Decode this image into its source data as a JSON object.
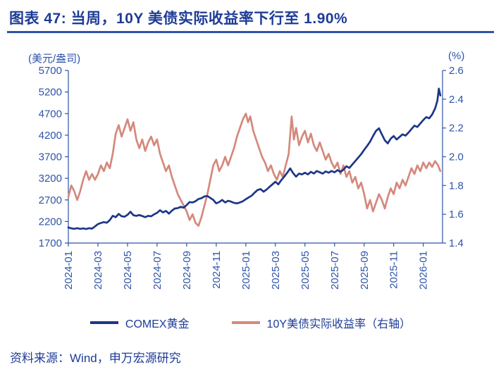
{
  "title": "图表 47: 当周，10Y 美债实际收益率下行至 1.90%",
  "source": "资料来源：Wind，申万宏源研究",
  "colors": {
    "title_text": "#1e3c96",
    "rule": "#2e54a8",
    "axis": "#2e54a8",
    "body_text": "#1e3c96",
    "gold_line": "#1c3786",
    "yield_line": "#d4897c"
  },
  "chart_data": {
    "type": "line",
    "title": "当周，10Y 美债实际收益率下行至 1.90%",
    "grid": false,
    "legend_position": "bottom",
    "left_axis": {
      "label": "(美元/盎司)",
      "min": 1700,
      "max": 5700,
      "decimals": 0,
      "ticks": [
        1700,
        2200,
        2700,
        3200,
        3700,
        4200,
        4700,
        5200,
        5700
      ]
    },
    "right_axis": {
      "label": "(%)",
      "min": 1.4,
      "max": 2.6,
      "decimals": 1,
      "ticks": [
        1.4,
        1.6,
        1.8,
        2.0,
        2.2,
        2.4,
        2.6
      ]
    },
    "x_axis": {
      "unit": "months-since-2024-01",
      "min": 0,
      "max": 25.3,
      "tick_positions": [
        0,
        2,
        4,
        6,
        8,
        10,
        12,
        14,
        16,
        18,
        20,
        22,
        24
      ],
      "tick_labels": [
        "2024-01",
        "2024-03",
        "2024-05",
        "2024-07",
        "2024-09",
        "2024-11",
        "2025-01",
        "2025-03",
        "2025-05",
        "2025-07",
        "2025-09",
        "2025-11",
        "2026-01"
      ]
    },
    "series": [
      {
        "name": "COMEX黄金",
        "axis": "left",
        "color": "#1c3786",
        "points": [
          [
            0,
            2063
          ],
          [
            0.2,
            2040
          ],
          [
            0.4,
            2030
          ],
          [
            0.6,
            2045
          ],
          [
            0.8,
            2028
          ],
          [
            1,
            2040
          ],
          [
            1.2,
            2025
          ],
          [
            1.4,
            2045
          ],
          [
            1.6,
            2035
          ],
          [
            1.8,
            2085
          ],
          [
            2,
            2140
          ],
          [
            2.2,
            2165
          ],
          [
            2.4,
            2185
          ],
          [
            2.6,
            2170
          ],
          [
            2.8,
            2230
          ],
          [
            3,
            2330
          ],
          [
            3.2,
            2300
          ],
          [
            3.4,
            2375
          ],
          [
            3.6,
            2320
          ],
          [
            3.8,
            2310
          ],
          [
            4,
            2355
          ],
          [
            4.2,
            2425
          ],
          [
            4.4,
            2345
          ],
          [
            4.6,
            2330
          ],
          [
            4.8,
            2350
          ],
          [
            5,
            2325
          ],
          [
            5.2,
            2300
          ],
          [
            5.4,
            2330
          ],
          [
            5.6,
            2320
          ],
          [
            5.8,
            2365
          ],
          [
            6,
            2400
          ],
          [
            6.2,
            2460
          ],
          [
            6.4,
            2410
          ],
          [
            6.6,
            2445
          ],
          [
            6.8,
            2380
          ],
          [
            7,
            2450
          ],
          [
            7.2,
            2500
          ],
          [
            7.4,
            2510
          ],
          [
            7.6,
            2540
          ],
          [
            7.8,
            2520
          ],
          [
            8,
            2580
          ],
          [
            8.2,
            2650
          ],
          [
            8.4,
            2640
          ],
          [
            8.6,
            2670
          ],
          [
            8.8,
            2720
          ],
          [
            9,
            2740
          ],
          [
            9.2,
            2780
          ],
          [
            9.4,
            2790
          ],
          [
            9.6,
            2745
          ],
          [
            9.8,
            2700
          ],
          [
            10,
            2620
          ],
          [
            10.2,
            2650
          ],
          [
            10.4,
            2700
          ],
          [
            10.6,
            2640
          ],
          [
            10.8,
            2680
          ],
          [
            11,
            2660
          ],
          [
            11.2,
            2630
          ],
          [
            11.4,
            2620
          ],
          [
            11.6,
            2640
          ],
          [
            11.8,
            2670
          ],
          [
            12,
            2715
          ],
          [
            12.2,
            2760
          ],
          [
            12.4,
            2800
          ],
          [
            12.6,
            2870
          ],
          [
            12.8,
            2930
          ],
          [
            13,
            2950
          ],
          [
            13.2,
            2890
          ],
          [
            13.4,
            2940
          ],
          [
            13.6,
            3000
          ],
          [
            13.8,
            3060
          ],
          [
            14,
            3120
          ],
          [
            14.2,
            3060
          ],
          [
            14.4,
            3160
          ],
          [
            14.6,
            3240
          ],
          [
            14.8,
            3330
          ],
          [
            15,
            3430
          ],
          [
            15.2,
            3320
          ],
          [
            15.4,
            3240
          ],
          [
            15.6,
            3310
          ],
          [
            15.8,
            3290
          ],
          [
            16,
            3330
          ],
          [
            16.2,
            3290
          ],
          [
            16.4,
            3350
          ],
          [
            16.6,
            3310
          ],
          [
            16.8,
            3370
          ],
          [
            17,
            3340
          ],
          [
            17.2,
            3310
          ],
          [
            17.4,
            3360
          ],
          [
            17.6,
            3330
          ],
          [
            17.8,
            3370
          ],
          [
            18,
            3340
          ],
          [
            18.2,
            3390
          ],
          [
            18.4,
            3350
          ],
          [
            18.6,
            3400
          ],
          [
            18.8,
            3480
          ],
          [
            19,
            3440
          ],
          [
            19.2,
            3520
          ],
          [
            19.4,
            3600
          ],
          [
            19.6,
            3680
          ],
          [
            19.8,
            3760
          ],
          [
            20,
            3860
          ],
          [
            20.2,
            3950
          ],
          [
            20.4,
            4050
          ],
          [
            20.6,
            4180
          ],
          [
            20.8,
            4300
          ],
          [
            21,
            4360
          ],
          [
            21.2,
            4220
          ],
          [
            21.4,
            4080
          ],
          [
            21.6,
            4010
          ],
          [
            21.8,
            4120
          ],
          [
            22,
            4180
          ],
          [
            22.2,
            4100
          ],
          [
            22.4,
            4160
          ],
          [
            22.6,
            4220
          ],
          [
            22.8,
            4190
          ],
          [
            23,
            4260
          ],
          [
            23.2,
            4340
          ],
          [
            23.4,
            4420
          ],
          [
            23.6,
            4390
          ],
          [
            23.8,
            4470
          ],
          [
            24,
            4550
          ],
          [
            24.2,
            4620
          ],
          [
            24.4,
            4590
          ],
          [
            24.6,
            4680
          ],
          [
            24.8,
            4820
          ],
          [
            24.95,
            5000
          ],
          [
            25.05,
            5280
          ],
          [
            25.15,
            5120
          ]
        ]
      },
      {
        "name": "10Y美债实际收益率（右轴）",
        "axis": "right",
        "color": "#d4897c",
        "points": [
          [
            0,
            1.72
          ],
          [
            0.2,
            1.8
          ],
          [
            0.4,
            1.76
          ],
          [
            0.6,
            1.7
          ],
          [
            0.8,
            1.76
          ],
          [
            1,
            1.84
          ],
          [
            1.2,
            1.9
          ],
          [
            1.4,
            1.84
          ],
          [
            1.6,
            1.88
          ],
          [
            1.8,
            1.84
          ],
          [
            2,
            1.88
          ],
          [
            2.2,
            1.94
          ],
          [
            2.4,
            1.9
          ],
          [
            2.6,
            1.96
          ],
          [
            2.8,
            1.92
          ],
          [
            3,
            2.02
          ],
          [
            3.2,
            2.16
          ],
          [
            3.4,
            2.22
          ],
          [
            3.6,
            2.14
          ],
          [
            3.8,
            2.2
          ],
          [
            4,
            2.26
          ],
          [
            4.2,
            2.18
          ],
          [
            4.4,
            2.24
          ],
          [
            4.6,
            2.12
          ],
          [
            4.8,
            2.06
          ],
          [
            5,
            2.12
          ],
          [
            5.2,
            2.04
          ],
          [
            5.4,
            2.1
          ],
          [
            5.6,
            2.14
          ],
          [
            5.8,
            2.08
          ],
          [
            6,
            2.12
          ],
          [
            6.2,
            2.02
          ],
          [
            6.4,
            1.96
          ],
          [
            6.6,
            1.9
          ],
          [
            6.8,
            1.94
          ],
          [
            7,
            1.86
          ],
          [
            7.2,
            1.8
          ],
          [
            7.4,
            1.74
          ],
          [
            7.6,
            1.7
          ],
          [
            7.8,
            1.66
          ],
          [
            8,
            1.62
          ],
          [
            8.2,
            1.56
          ],
          [
            8.4,
            1.6
          ],
          [
            8.6,
            1.54
          ],
          [
            8.8,
            1.52
          ],
          [
            9,
            1.58
          ],
          [
            9.2,
            1.66
          ],
          [
            9.4,
            1.74
          ],
          [
            9.6,
            1.84
          ],
          [
            9.8,
            1.94
          ],
          [
            10,
            1.98
          ],
          [
            10.2,
            1.9
          ],
          [
            10.4,
            1.94
          ],
          [
            10.6,
            2.0
          ],
          [
            10.8,
            1.94
          ],
          [
            11,
            2.0
          ],
          [
            11.2,
            2.06
          ],
          [
            11.4,
            2.14
          ],
          [
            11.6,
            2.2
          ],
          [
            11.8,
            2.26
          ],
          [
            12,
            2.3
          ],
          [
            12.15,
            2.24
          ],
          [
            12.3,
            2.28
          ],
          [
            12.5,
            2.18
          ],
          [
            12.7,
            2.12
          ],
          [
            12.9,
            2.06
          ],
          [
            13.1,
            2.0
          ],
          [
            13.3,
            1.96
          ],
          [
            13.5,
            1.9
          ],
          [
            13.7,
            1.94
          ],
          [
            13.9,
            1.88
          ],
          [
            14.1,
            1.84
          ],
          [
            14.3,
            1.9
          ],
          [
            14.5,
            1.86
          ],
          [
            14.7,
            1.94
          ],
          [
            14.9,
            2.02
          ],
          [
            15.1,
            2.28
          ],
          [
            15.25,
            2.12
          ],
          [
            15.4,
            2.2
          ],
          [
            15.6,
            2.08
          ],
          [
            15.8,
            2.14
          ],
          [
            16,
            2.18
          ],
          [
            16.2,
            2.1
          ],
          [
            16.4,
            2.16
          ],
          [
            16.6,
            2.08
          ],
          [
            16.8,
            2.04
          ],
          [
            17,
            2.1
          ],
          [
            17.2,
            2.04
          ],
          [
            17.4,
            1.98
          ],
          [
            17.6,
            2.02
          ],
          [
            17.8,
            1.96
          ],
          [
            18,
            1.92
          ],
          [
            18.2,
            1.96
          ],
          [
            18.4,
            1.88
          ],
          [
            18.6,
            1.94
          ],
          [
            18.8,
            1.86
          ],
          [
            19,
            1.9
          ],
          [
            19.2,
            1.82
          ],
          [
            19.4,
            1.86
          ],
          [
            19.6,
            1.78
          ],
          [
            19.8,
            1.82
          ],
          [
            20,
            1.74
          ],
          [
            20.2,
            1.64
          ],
          [
            20.4,
            1.7
          ],
          [
            20.6,
            1.62
          ],
          [
            20.8,
            1.68
          ],
          [
            21,
            1.74
          ],
          [
            21.2,
            1.7
          ],
          [
            21.4,
            1.64
          ],
          [
            21.6,
            1.72
          ],
          [
            21.8,
            1.78
          ],
          [
            22,
            1.74
          ],
          [
            22.2,
            1.82
          ],
          [
            22.4,
            1.78
          ],
          [
            22.6,
            1.84
          ],
          [
            22.8,
            1.8
          ],
          [
            23,
            1.86
          ],
          [
            23.2,
            1.92
          ],
          [
            23.4,
            1.88
          ],
          [
            23.6,
            1.94
          ],
          [
            23.8,
            1.9
          ],
          [
            24,
            1.96
          ],
          [
            24.2,
            1.92
          ],
          [
            24.4,
            1.96
          ],
          [
            24.6,
            1.93
          ],
          [
            24.8,
            1.97
          ],
          [
            25,
            1.94
          ],
          [
            25.15,
            1.9
          ]
        ]
      }
    ]
  }
}
